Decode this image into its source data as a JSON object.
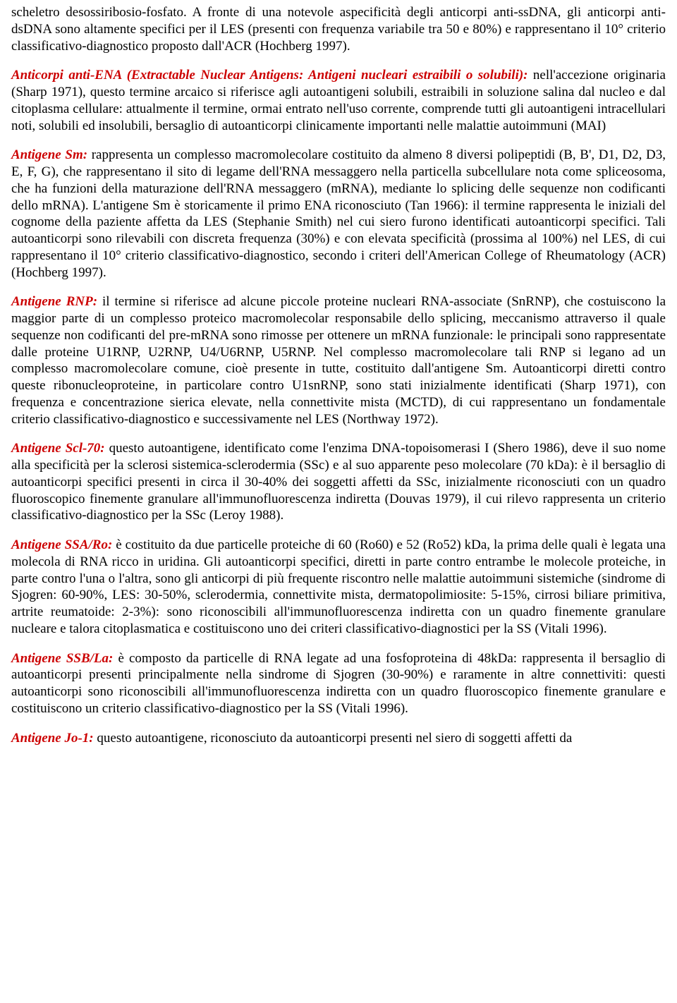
{
  "colors": {
    "text": "#000000",
    "term": "#cc0000",
    "background": "#ffffff"
  },
  "typography": {
    "family": "Times New Roman",
    "size_pt": 14,
    "term_style": "italic bold"
  },
  "p0": {
    "text": "scheletro desossiribosio-fosfato. A fronte di una notevole aspecificità degli anticorpi anti-ssDNA, gli anticorpi anti-dsDNA sono altamente specifici per il LES (presenti con frequenza variabile tra 50 e 80%) e rappresentano il 10° criterio classificativo-diagnostico proposto dall'ACR (Hochberg 1997)."
  },
  "p1": {
    "term": "Anticorpi anti-ENA (Extractable Nuclear Antigens: Antigeni nucleari estraibili o solubili):",
    "text": " nell'accezione originaria (Sharp 1971), questo termine arcaico si riferisce agli autoantigeni solubili, estraibili in soluzione salina dal nucleo e dal citoplasma cellulare: attualmente il termine, ormai entrato nell'uso corrente, comprende tutti gli autoantigeni intracellulari noti, solubili ed insolubili, bersaglio di autoanticorpi clinicamente importanti nelle malattie autoimmuni (MAI)"
  },
  "p2": {
    "term": "Antigene Sm:",
    "text": " rappresenta un complesso macromolecolare costituito da almeno 8 diversi polipeptidi (B, B', D1, D2, D3, E, F, G), che rappresentano il sito di legame dell'RNA messaggero nella particella subcellulare nota come spliceosoma, che ha funzioni della maturazione dell'RNA messaggero (mRNA), mediante lo splicing delle sequenze non codificanti dello mRNA). L'antigene Sm è storicamente il primo ENA riconosciuto (Tan 1966): il termine rappresenta le iniziali del cognome della paziente affetta da LES (Stephanie Smith) nel cui siero furono identificati autoanticorpi specifici. Tali autoanticorpi sono rilevabili con discreta frequenza (30%) e con elevata specificità (prossima al 100%) nel LES, di cui rappresentano il 10° criterio classificativo-diagnostico, secondo i criteri dell'American College of Rheumatology (ACR) (Hochberg 1997)."
  },
  "p3": {
    "term": "Antigene RNP:",
    "text": " il termine si riferisce ad alcune piccole proteine nucleari RNA-associate (SnRNP), che costuiscono la maggior parte di un complesso proteico macromolecolar responsabile dello splicing, meccanismo attraverso il quale sequenze non codificanti del pre-mRNA sono rimosse per ottenere un mRNA funzionale: le principali sono rappresentate dalle proteine U1RNP, U2RNP, U4/U6RNP, U5RNP. Nel complesso macromolecolare tali RNP si legano ad un complesso macromolecolare comune, cioè presente in tutte, costituito dall'antigene Sm. Autoanticorpi diretti contro queste ribonucleoproteine, in particolare contro U1snRNP, sono stati inizialmente identificati (Sharp 1971), con frequenza e concentrazione sierica elevate, nella connettivite mista (MCTD), di cui rappresentano un fondamentale criterio classificativo-diagnostico e successivamente nel LES (Northway 1972)."
  },
  "p4": {
    "term": "Antigene Scl-70:",
    "text": " questo autoantigene, identificato come l'enzima DNA-topoisomerasi I (Shero 1986), deve il suo nome alla specificità per la sclerosi sistemica-sclerodermia (SSc) e al suo apparente peso molecolare (70 kDa): è il bersaglio di autoanticorpi specifici presenti in circa il 30-40% dei soggetti affetti da SSc, inizialmente riconosciuti con un quadro fluoroscopico finemente granulare all'immunofluorescenza indiretta (Douvas 1979), il cui rilevo rappresenta un criterio classificativo-diagnostico per la SSc (Leroy 1988)."
  },
  "p5": {
    "term": "Antigene SSA/Ro:",
    "text": " è costituito da due particelle proteiche di 60 (Ro60) e 52 (Ro52) kDa, la prima delle quali è legata una molecola di RNA ricco in uridina. Gli autoanticorpi specifici, diretti in parte contro entrambe le molecole proteiche, in parte contro l'una o l'altra, sono gli anticorpi di più frequente riscontro nelle malattie autoimmuni sistemiche (sindrome di Sjogren: 60-90%, LES: 30-50%, sclerodermia, connettivite mista, dermatopolimiosite: 5-15%, cirrosi biliare primitiva, artrite reumatoide: 2-3%): sono riconoscibili all'immunofluorescenza indiretta con un quadro finemente granulare nucleare e talora citoplasmatica e costituiscono uno dei criteri classificativo-diagnostici per la SS (Vitali 1996)."
  },
  "p6": {
    "term": "Antigene SSB/La:",
    "text": " è composto da particelle di RNA legate ad una fosfoproteina di 48kDa: rappresenta il bersaglio di autoanticorpi presenti principalmente nella sindrome di Sjogren (30-90%) e raramente in altre connettiviti: questi autoanticorpi sono riconoscibili all'immunofluorescenza indiretta con un quadro fluoroscopico finemente granulare e costituiscono un criterio classificativo-diagnostico per la SS (Vitali 1996)."
  },
  "p7": {
    "term": "Antigene Jo-1:",
    "text": " questo autoantigene, riconosciuto da autoanticorpi presenti nel siero di soggetti affetti da"
  }
}
